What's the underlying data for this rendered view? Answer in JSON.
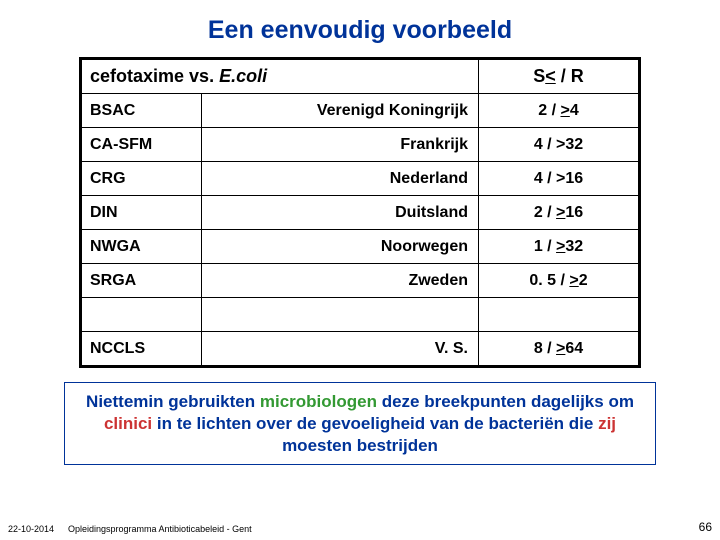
{
  "title": "Een eenvoudig voorbeeld",
  "header": {
    "left_pre": "cefotaxime vs. ",
    "left_italic": "E.coli",
    "right_pre": "S",
    "right_u": "<",
    "right_post": " / R"
  },
  "rows": [
    {
      "code": "BSAC",
      "country": "Verenigd Koningrijk",
      "val_pre": "2 / ",
      "val_u": ">",
      "val_post": "4"
    },
    {
      "code": "CA-SFM",
      "country": "Frankrijk",
      "val_pre": "4 / >32",
      "val_u": "",
      "val_post": ""
    },
    {
      "code": "CRG",
      "country": "Nederland",
      "val_pre": "4 / >16",
      "val_u": "",
      "val_post": ""
    },
    {
      "code": "DIN",
      "country": "Duitsland",
      "val_pre": "2 / ",
      "val_u": ">",
      "val_post": "16"
    },
    {
      "code": "NWGA",
      "country": "Noorwegen",
      "val_pre": "1 / ",
      "val_u": ">",
      "val_post": "32"
    },
    {
      "code": "SRGA",
      "country": "Zweden",
      "val_pre": "0. 5 / ",
      "val_u": ">",
      "val_post": "2"
    }
  ],
  "last_row": {
    "code": "NCCLS",
    "country": "V. S.",
    "val_pre": "8 / ",
    "val_u": ">",
    "val_post": "64"
  },
  "note": {
    "t1": "Niettemin gebruikten ",
    "microbiologen": "microbiologen",
    "t2": " deze breekpunten dagelijks om ",
    "clinici": "clinici",
    "t3": " in te lichten over de gevoeligheid van de bacteriën die ",
    "zij": "zij",
    "t4": " moesten bestrijden"
  },
  "footer": {
    "date": "22-10-2014",
    "program": "Opleidingsprogramma Antibioticabeleid - Gent",
    "page": "66"
  }
}
